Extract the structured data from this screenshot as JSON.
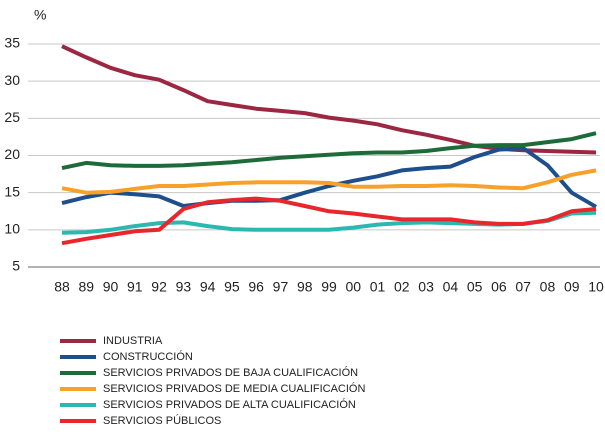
{
  "chart_data": {
    "type": "line",
    "y_unit": "%",
    "categories": [
      "88",
      "89",
      "90",
      "91",
      "92",
      "93",
      "94",
      "95",
      "96",
      "97",
      "98",
      "99",
      "00",
      "01",
      "02",
      "03",
      "04",
      "05",
      "06",
      "07",
      "08",
      "09",
      "10"
    ],
    "ylim": [
      5,
      35
    ],
    "yticks": [
      5,
      10,
      15,
      20,
      25,
      30,
      35
    ],
    "grid": true,
    "series": [
      {
        "name": "INDUSTRIA",
        "color": "#9b2743",
        "values": [
          34.7,
          33.2,
          31.8,
          30.8,
          30.2,
          28.8,
          27.3,
          26.8,
          26.3,
          26,
          25.7,
          25.1,
          24.7,
          24.2,
          23.4,
          22.8,
          22.1,
          21.3,
          20.9,
          20.7,
          20.6,
          20.5,
          20.4
        ]
      },
      {
        "name": "CONSTRUCCIÓN",
        "color": "#1f4e8c",
        "values": [
          13.6,
          14.4,
          15,
          14.8,
          14.5,
          13.2,
          13.6,
          13.9,
          13.9,
          14,
          15,
          15.9,
          16.6,
          17.2,
          18,
          18.3,
          18.5,
          19.8,
          20.8,
          21,
          18.7,
          15,
          13.1
        ]
      },
      {
        "name": "SERVICIOS PRIVADOS DE BAJA CUALIFICACIÓN",
        "color": "#1e6b3a",
        "values": [
          18.3,
          19,
          18.7,
          18.6,
          18.6,
          18.7,
          18.9,
          19.1,
          19.4,
          19.7,
          19.9,
          20.1,
          20.3,
          20.4,
          20.4,
          20.6,
          21,
          21.3,
          21.4,
          21.4,
          21.8,
          22.2,
          23
        ]
      },
      {
        "name": "SERVICIOS PRIVADOS DE MEDIA CUALIFICACIÓN",
        "color": "#f7a12b",
        "values": [
          15.6,
          15,
          15.1,
          15.5,
          15.9,
          15.9,
          16.1,
          16.3,
          16.4,
          16.4,
          16.4,
          16.3,
          15.8,
          15.8,
          15.9,
          15.9,
          16,
          15.9,
          15.7,
          15.6,
          16.4,
          17.4,
          18
        ]
      },
      {
        "name": "SERVICIOS PRIVADOS DE ALTA CUALIFICACIÓN",
        "color": "#2bb8b0",
        "values": [
          9.6,
          9.7,
          10,
          10.5,
          10.9,
          11,
          10.5,
          10.1,
          10,
          10,
          10,
          10,
          10.3,
          10.7,
          10.9,
          11,
          10.9,
          10.8,
          10.7,
          10.8,
          11.2,
          12.2,
          12.3
        ]
      },
      {
        "name": "SERVICIOS PÚBLICOS",
        "color": "#e8262c",
        "values": [
          8.2,
          8.8,
          9.3,
          9.8,
          10,
          12.8,
          13.7,
          14,
          14.2,
          13.9,
          13.2,
          12.5,
          12.2,
          11.8,
          11.4,
          11.4,
          11.4,
          11,
          10.8,
          10.8,
          11.3,
          12.5,
          12.8
        ]
      }
    ]
  }
}
